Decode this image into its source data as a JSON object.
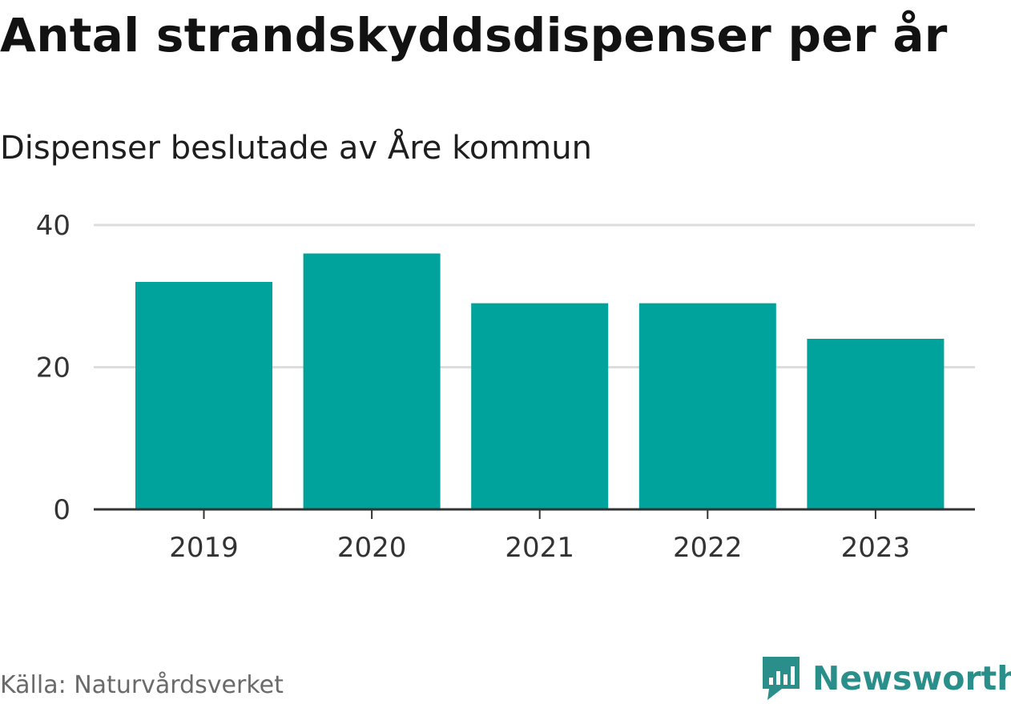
{
  "title": "Antal strandskyddsdispenser per år",
  "subtitle": "Dispenser beslutade av Åre kommun",
  "source": "Källa: Naturvårdsverket",
  "brand": {
    "name": "Newsworthy",
    "icon": "newsworthy-logo-icon",
    "color": "#2a8f8a"
  },
  "colors": {
    "bar": "#00a39b",
    "grid": "#dddddd",
    "axis": "#333333"
  },
  "chart_data": {
    "type": "bar",
    "categories": [
      "2019",
      "2020",
      "2021",
      "2022",
      "2023"
    ],
    "values": [
      32,
      36,
      29,
      29,
      24
    ],
    "yticks": [
      "0",
      "20",
      "40"
    ],
    "ylim": [
      0,
      40
    ],
    "grid": true,
    "legend": "none"
  }
}
